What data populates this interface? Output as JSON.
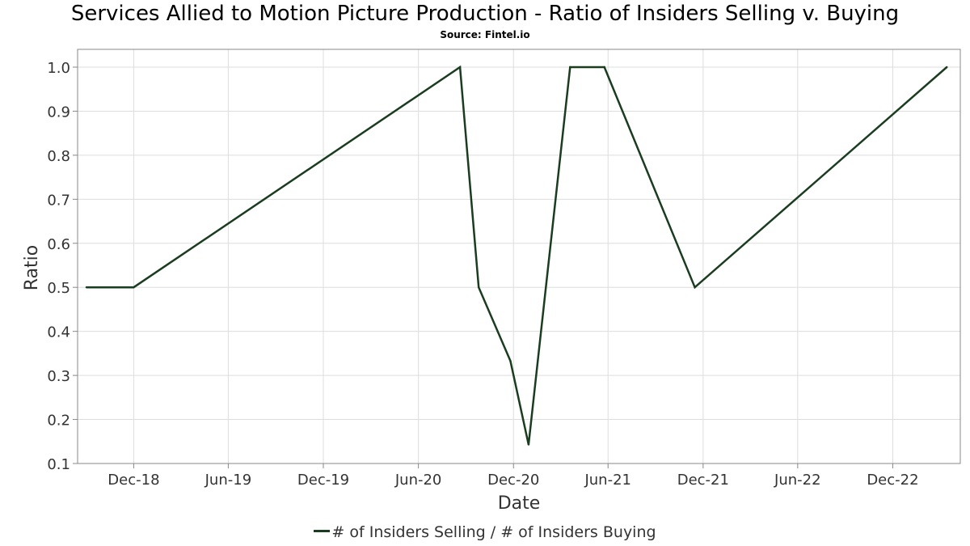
{
  "title": "Services Allied to Motion Picture Production - Ratio of Insiders Selling v. Buying",
  "subtitle": "Source: Fintel.io",
  "colors": {
    "line": "#1a3d1f",
    "grid": "#dddddd",
    "frame": "#888888",
    "text": "#333333"
  },
  "chart_data": {
    "type": "line",
    "xlabel": "Date",
    "ylabel": "Ratio",
    "ylim": [
      0.1,
      1.0
    ],
    "xlim": [
      "2018-08-15",
      "2023-04-10"
    ],
    "grid": true,
    "legend_position": "bottom",
    "x_ticks": [
      {
        "date": "2018-12-01",
        "label": "Dec-18"
      },
      {
        "date": "2019-06-01",
        "label": "Jun-19"
      },
      {
        "date": "2019-12-01",
        "label": "Dec-19"
      },
      {
        "date": "2020-06-01",
        "label": "Jun-20"
      },
      {
        "date": "2020-12-01",
        "label": "Dec-20"
      },
      {
        "date": "2021-06-01",
        "label": "Jun-21"
      },
      {
        "date": "2021-12-01",
        "label": "Dec-21"
      },
      {
        "date": "2022-06-01",
        "label": "Jun-22"
      },
      {
        "date": "2022-12-01",
        "label": "Dec-22"
      }
    ],
    "y_ticks": [
      {
        "value": 0.1,
        "label": "0.1"
      },
      {
        "value": 0.2,
        "label": "0.2"
      },
      {
        "value": 0.3,
        "label": "0.3"
      },
      {
        "value": 0.4,
        "label": "0.4"
      },
      {
        "value": 0.5,
        "label": "0.5"
      },
      {
        "value": 0.6,
        "label": "0.6"
      },
      {
        "value": 0.7,
        "label": "0.7"
      },
      {
        "value": 0.8,
        "label": "0.8"
      },
      {
        "value": 0.9,
        "label": "0.9"
      },
      {
        "value": 1.0,
        "label": "1.0"
      }
    ],
    "series": [
      {
        "name": "# of Insiders Selling / # of Insiders Buying",
        "points": [
          {
            "x": "2018-09-01",
            "y": 0.5
          },
          {
            "x": "2018-12-01",
            "y": 0.5
          },
          {
            "x": "2020-08-20",
            "y": 1.0
          },
          {
            "x": "2020-09-25",
            "y": 0.5
          },
          {
            "x": "2020-11-25",
            "y": 0.333
          },
          {
            "x": "2020-12-30",
            "y": 0.143
          },
          {
            "x": "2021-03-20",
            "y": 1.0
          },
          {
            "x": "2021-05-25",
            "y": 1.0
          },
          {
            "x": "2021-11-15",
            "y": 0.5
          },
          {
            "x": "2023-03-15",
            "y": 1.0
          }
        ]
      }
    ]
  }
}
